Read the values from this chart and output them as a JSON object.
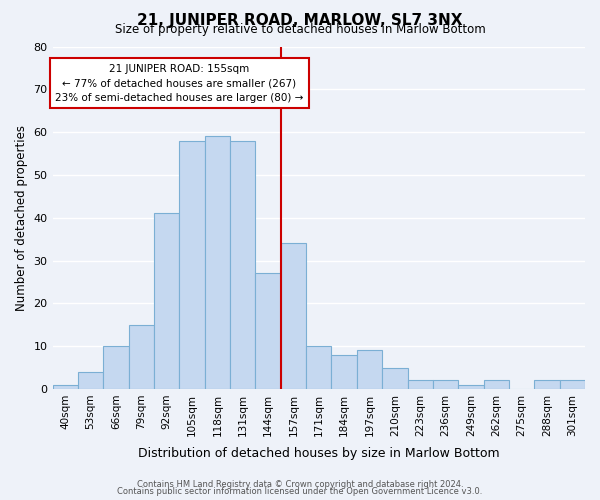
{
  "title": "21, JUNIPER ROAD, MARLOW, SL7 3NX",
  "subtitle": "Size of property relative to detached houses in Marlow Bottom",
  "xlabel": "Distribution of detached houses by size in Marlow Bottom",
  "ylabel": "Number of detached properties",
  "footer1": "Contains HM Land Registry data © Crown copyright and database right 2024.",
  "footer2": "Contains public sector information licensed under the Open Government Licence v3.0.",
  "bar_labels": [
    "40sqm",
    "53sqm",
    "66sqm",
    "79sqm",
    "92sqm",
    "105sqm",
    "118sqm",
    "131sqm",
    "144sqm",
    "157sqm",
    "171sqm",
    "184sqm",
    "197sqm",
    "210sqm",
    "223sqm",
    "236sqm",
    "249sqm",
    "262sqm",
    "275sqm",
    "288sqm",
    "301sqm"
  ],
  "bar_values": [
    1,
    4,
    10,
    15,
    41,
    58,
    59,
    58,
    27,
    34,
    10,
    8,
    9,
    5,
    2,
    2,
    1,
    2,
    0,
    2,
    2
  ],
  "bar_color": "#c5d8f0",
  "bar_edge_color": "#7bafd4",
  "reference_line_x": 9.0,
  "annotation_title": "21 JUNIPER ROAD: 155sqm",
  "annotation_line1": "← 77% of detached houses are smaller (267)",
  "annotation_line2": "23% of semi-detached houses are larger (80) →",
  "annotation_box_color": "#ffffff",
  "annotation_box_edge": "#cc0000",
  "ref_line_color": "#cc0000",
  "ylim": [
    0,
    80
  ],
  "yticks": [
    0,
    10,
    20,
    30,
    40,
    50,
    60,
    70,
    80
  ],
  "bg_color": "#eef2f9",
  "grid_color": "#ffffff"
}
